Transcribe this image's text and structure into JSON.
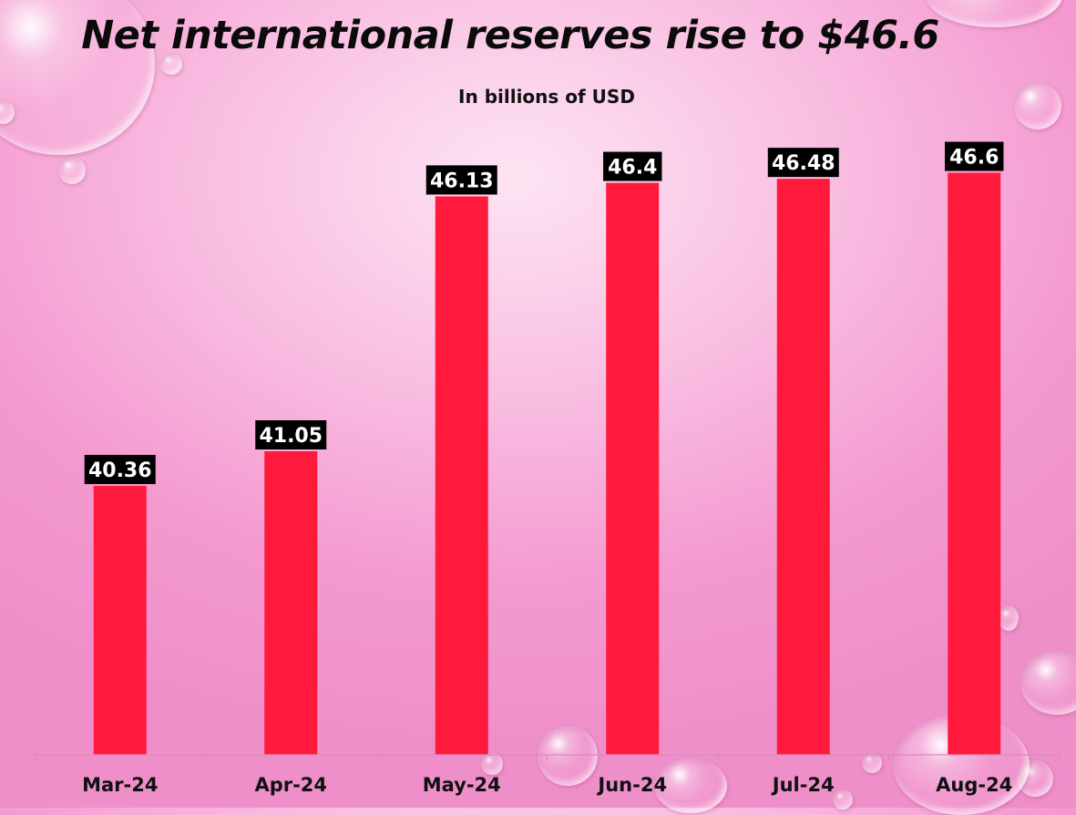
{
  "chart_data": {
    "type": "bar",
    "title": "Net international reserves rise to $46.6",
    "subtitle": "In billions of USD",
    "categories": [
      "Mar-24",
      "Apr-24",
      "May-24",
      "Jun-24",
      "Jul-24",
      "Aug-24"
    ],
    "values": [
      40.36,
      41.05,
      46.13,
      46.4,
      46.48,
      46.6
    ],
    "value_labels": [
      "40.36",
      "41.05",
      "46.13",
      "46.4",
      "46.48",
      "46.6"
    ],
    "xlabel": "",
    "ylabel": "",
    "ylim": [
      35,
      47.5
    ],
    "grid": false,
    "legend": "none",
    "colors": {
      "bar": "#ff1a3c",
      "label_bg": "#000000",
      "label_text": "#ffffff",
      "axis": "#d98ab8"
    }
  }
}
